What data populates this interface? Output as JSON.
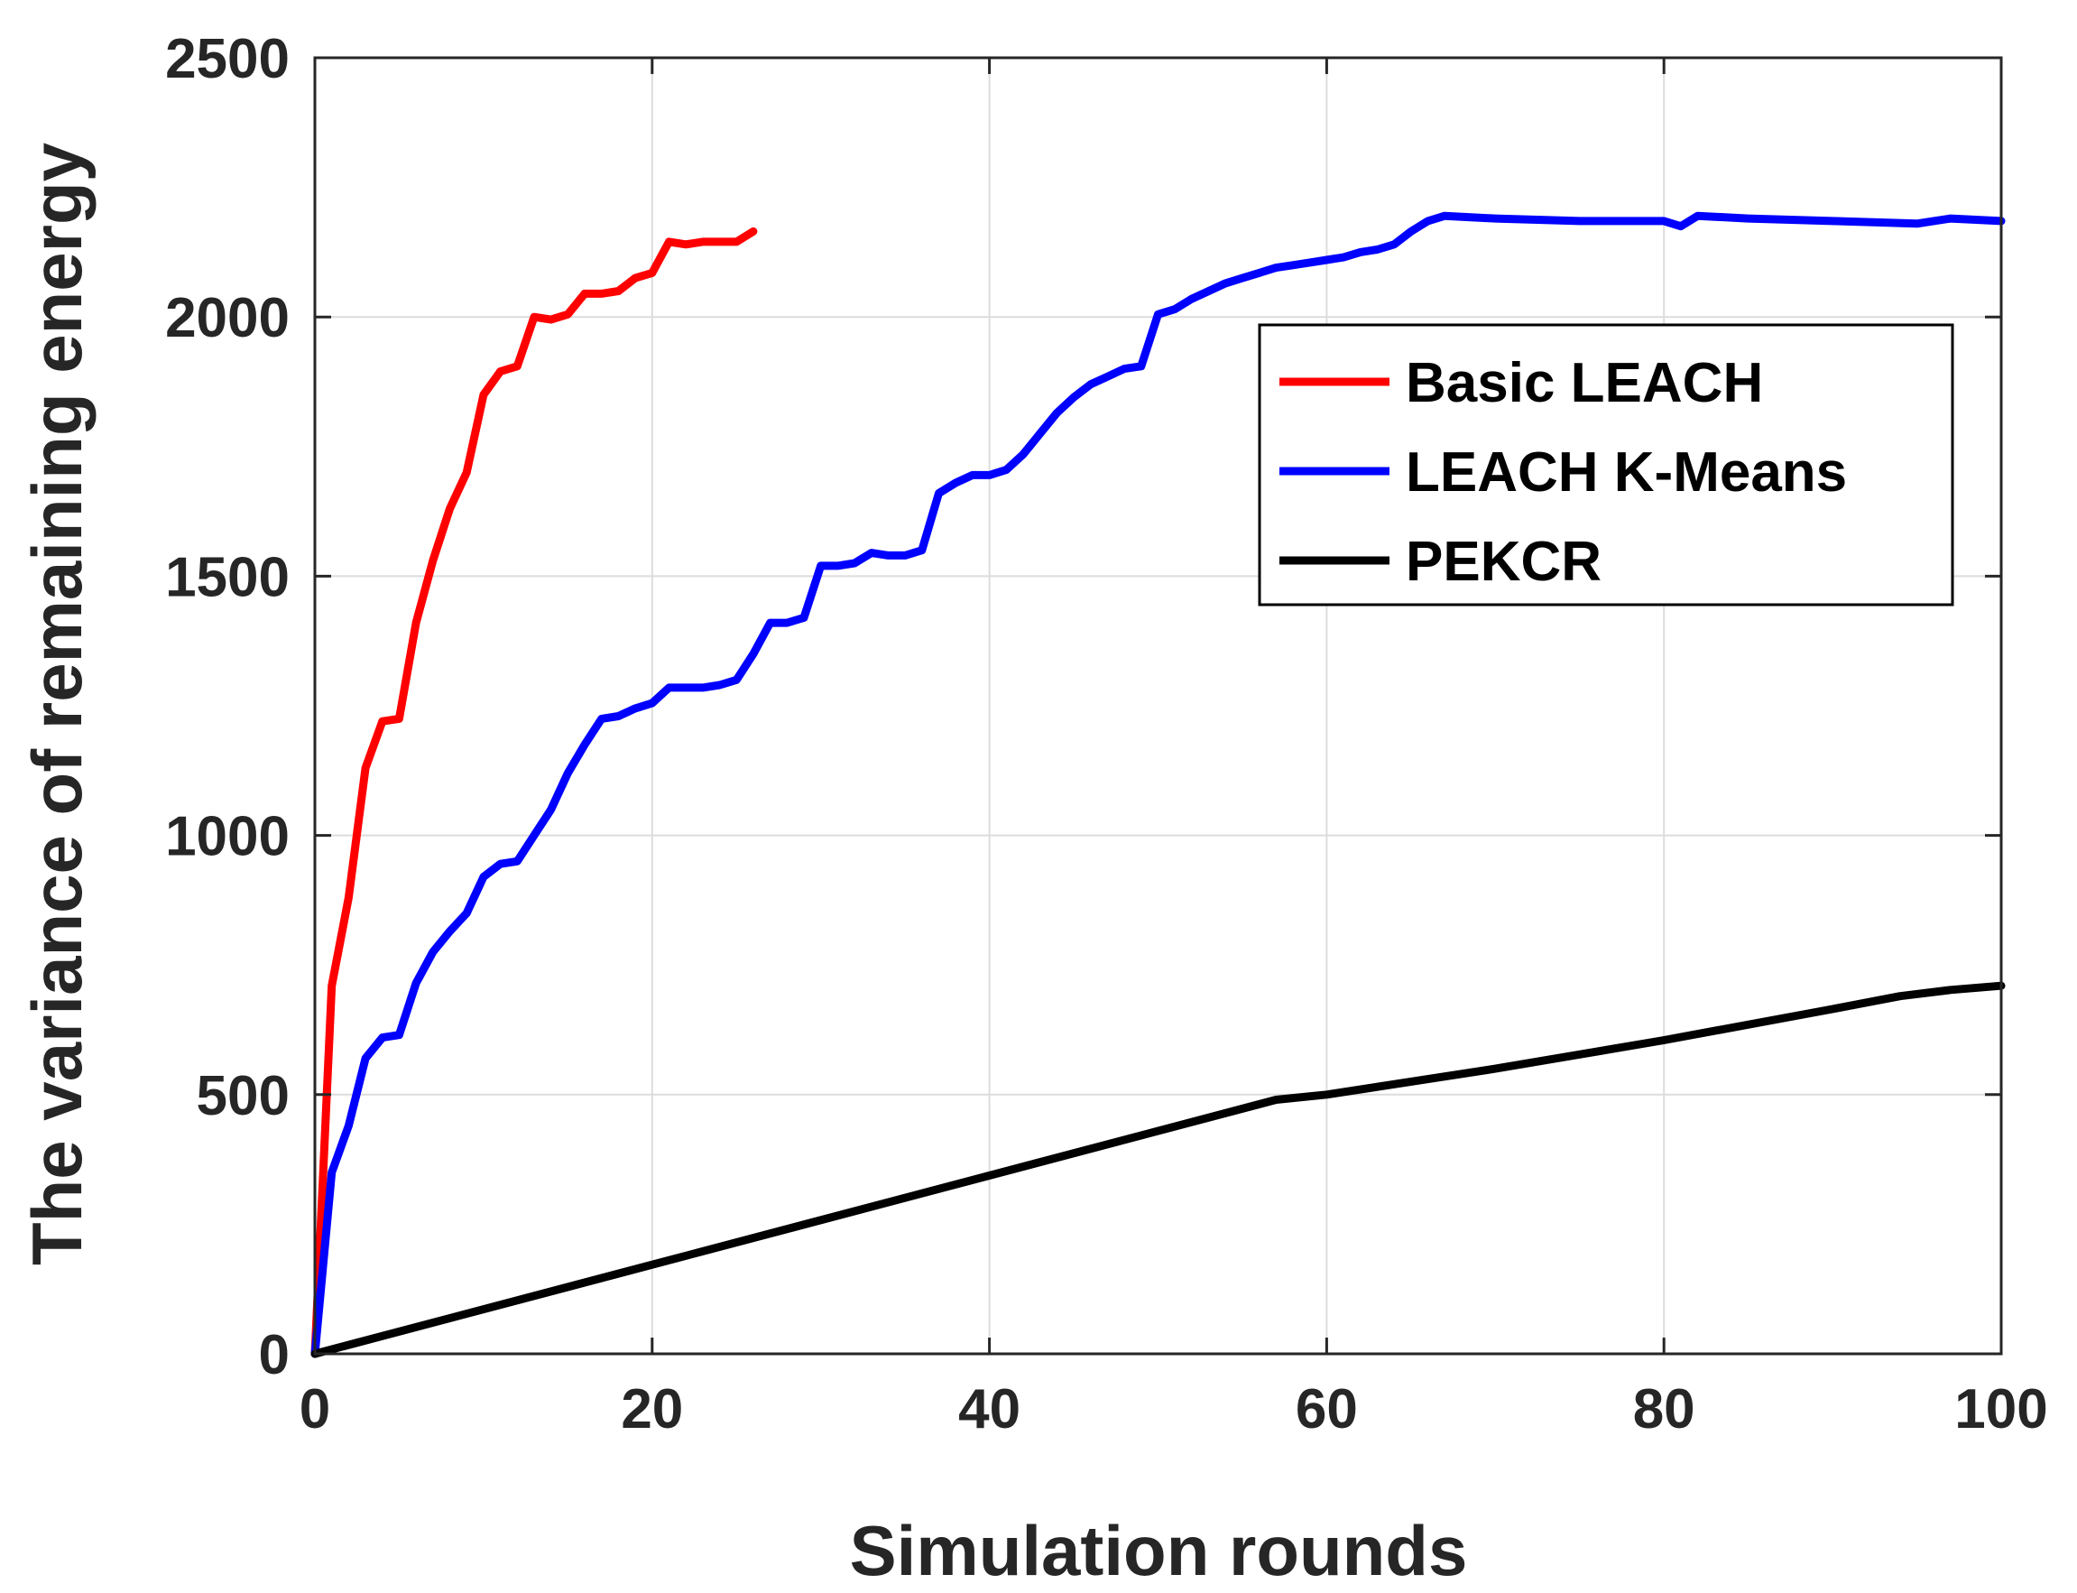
{
  "chart_data": {
    "type": "line",
    "title": "",
    "xlabel": "Simulation rounds",
    "ylabel": "The variance of remaining energy",
    "xlim": [
      0,
      100
    ],
    "ylim": [
      0,
      2500
    ],
    "xticks": [
      0,
      20,
      40,
      60,
      80,
      100
    ],
    "yticks": [
      0,
      500,
      1000,
      1500,
      2000,
      2500
    ],
    "grid": true,
    "legend_position": "top-right",
    "series": [
      {
        "name": "Basic LEACH",
        "color": "#ff0000",
        "x": [
          0,
          1,
          2,
          3,
          4,
          5,
          6,
          7,
          8,
          9,
          10,
          11,
          12,
          13,
          14,
          15,
          16,
          17,
          18,
          19,
          20,
          21,
          22,
          23,
          24,
          25,
          26
        ],
        "y": [
          0,
          710,
          880,
          1130,
          1220,
          1225,
          1410,
          1530,
          1630,
          1700,
          1850,
          1895,
          1905,
          2000,
          1995,
          2005,
          2045,
          2045,
          2050,
          2075,
          2085,
          2145,
          2140,
          2145,
          2145,
          2145,
          2165
        ]
      },
      {
        "name": "LEACH K-Means",
        "color": "#0000ff",
        "x": [
          0,
          1,
          2,
          3,
          4,
          5,
          6,
          7,
          8,
          9,
          10,
          11,
          12,
          13,
          14,
          15,
          16,
          17,
          18,
          19,
          20,
          21,
          22,
          23,
          24,
          25,
          26,
          27,
          28,
          29,
          30,
          31,
          32,
          33,
          34,
          35,
          36,
          37,
          38,
          39,
          40,
          41,
          42,
          43,
          44,
          45,
          46,
          47,
          48,
          49,
          50,
          51,
          52,
          53,
          54,
          55,
          56,
          57,
          58,
          59,
          60,
          61,
          62,
          63,
          64,
          65,
          66,
          67,
          70,
          75,
          80,
          81,
          82,
          85,
          90,
          95,
          96,
          97,
          100
        ],
        "y": [
          0,
          350,
          440,
          570,
          610,
          615,
          715,
          775,
          815,
          850,
          920,
          945,
          950,
          1000,
          1050,
          1120,
          1175,
          1225,
          1230,
          1245,
          1255,
          1285,
          1285,
          1285,
          1290,
          1300,
          1350,
          1410,
          1410,
          1420,
          1520,
          1520,
          1525,
          1545,
          1540,
          1540,
          1550,
          1660,
          1680,
          1695,
          1695,
          1705,
          1735,
          1775,
          1815,
          1845,
          1870,
          1885,
          1900,
          1905,
          2005,
          2015,
          2035,
          2050,
          2065,
          2075,
          2085,
          2095,
          2100,
          2105,
          2110,
          2115,
          2125,
          2130,
          2140,
          2165,
          2185,
          2195,
          2190,
          2185,
          2185,
          2175,
          2195,
          2190,
          2185,
          2180,
          2185,
          2190,
          2185
        ]
      },
      {
        "name": "PEKCR",
        "color": "#000000",
        "x": [
          0,
          57,
          60,
          70,
          80,
          90,
          94,
          97,
          100
        ],
        "y": [
          0,
          490,
          500,
          550,
          605,
          665,
          690,
          702,
          710
        ]
      }
    ]
  }
}
